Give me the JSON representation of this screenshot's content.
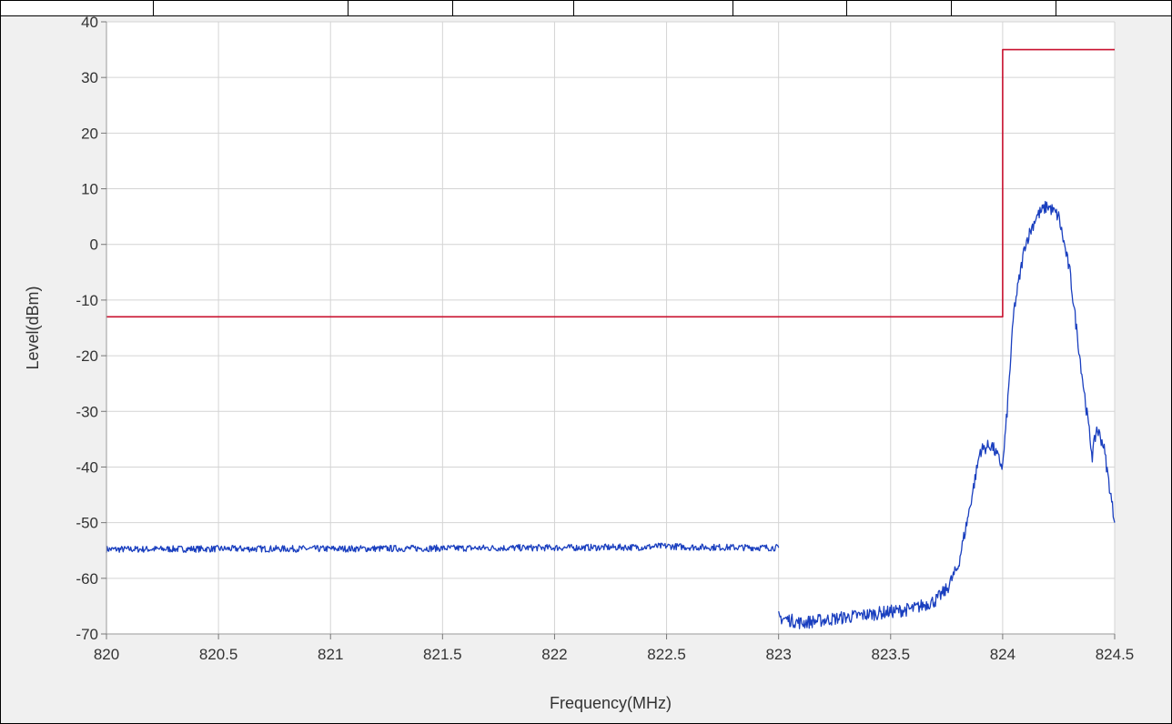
{
  "chart_data": {
    "type": "line",
    "title": "",
    "xlabel": "Frequency(MHz)",
    "ylabel": "Level(dBm)",
    "xlim": [
      820,
      824.5
    ],
    "ylim": [
      -70,
      40
    ],
    "grid": true,
    "x_ticks": [
      "820",
      "820.5",
      "821",
      "821.5",
      "822",
      "822.5",
      "823",
      "823.5",
      "824",
      "824.5"
    ],
    "y_ticks": [
      "40",
      "30",
      "20",
      "10",
      "0",
      "-10",
      "-20",
      "-30",
      "-40",
      "-50",
      "-60",
      "-70"
    ],
    "series": [
      {
        "color": "#c8102e",
        "x": [
          820,
          824,
          824,
          824.5
        ],
        "y": [
          -13,
          -13,
          35,
          35
        ]
      },
      {
        "color": "#1a3fbf",
        "noise": 0.6,
        "x": [
          820,
          820.5,
          821,
          821.5,
          822,
          822.4,
          822.5,
          822.6,
          823
        ],
        "y": [
          -54.8,
          -54.7,
          -54.7,
          -54.6,
          -54.5,
          -54.4,
          -54.2,
          -54.4,
          -54.5
        ]
      },
      {
        "color": "#1a3fbf",
        "noise": 1.2,
        "x": [
          823,
          823.1,
          823.2,
          823.3,
          823.4,
          823.5,
          823.6,
          823.7,
          823.75,
          823.8,
          823.85,
          823.9,
          823.95,
          824,
          824.02,
          824.05,
          824.1,
          824.15,
          824.2,
          824.25,
          824.3,
          824.35,
          824.4,
          824.42,
          824.45,
          824.5
        ],
        "y": [
          -67,
          -68,
          -67.5,
          -67,
          -66.5,
          -66,
          -65.5,
          -64,
          -62,
          -58,
          -48,
          -37,
          -36,
          -40,
          -30,
          -12,
          0,
          5,
          7,
          5,
          -5,
          -22,
          -38,
          -33,
          -36,
          -50
        ]
      }
    ]
  }
}
